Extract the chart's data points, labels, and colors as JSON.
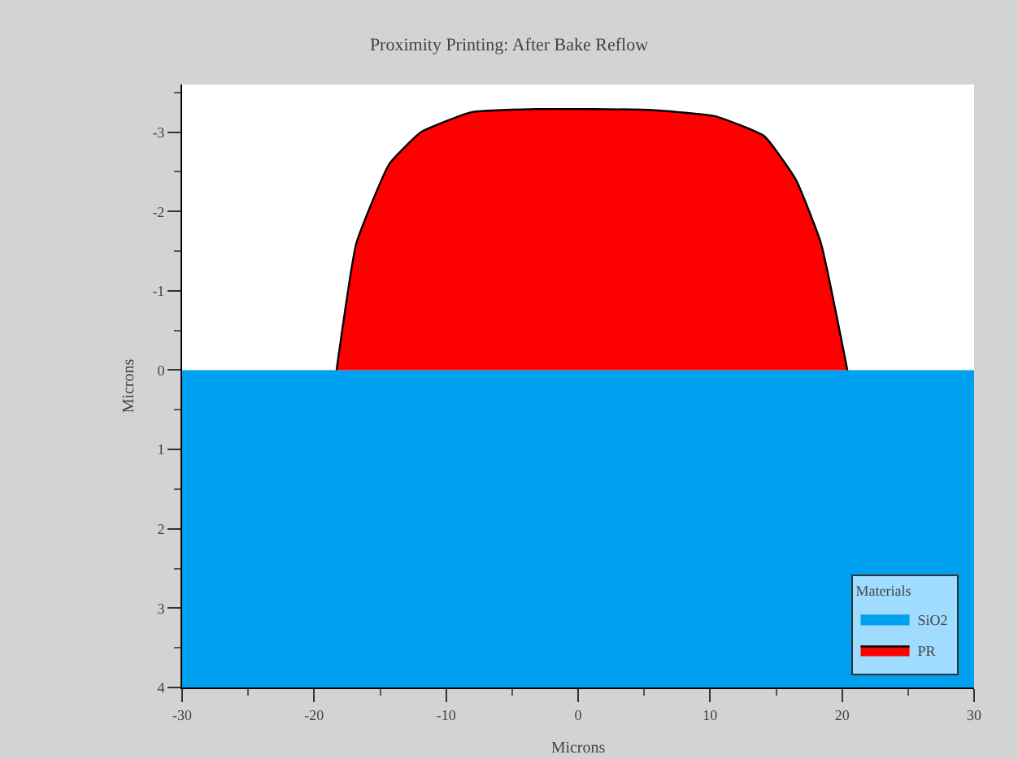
{
  "chart_data": {
    "type": "area",
    "title": "Proximity Printing: After Bake Reflow",
    "xlabel": "Microns",
    "ylabel": "Microns",
    "legend_title": "Materials",
    "legend": "bottom right",
    "grid": false,
    "marker": "none",
    "xlim": [
      -30,
      30
    ],
    "xticks": [
      -30,
      -20,
      -10,
      0,
      10,
      20,
      30
    ],
    "ylim": [
      4,
      -3.6
    ],
    "yticks": [
      -3,
      -2,
      -1,
      0,
      1,
      2,
      3,
      4
    ],
    "series": [
      {
        "name": "SiO2",
        "color": "#00a0f0",
        "x": [
          -30,
          30
        ],
        "values": [
          4,
          4
        ]
      },
      {
        "name": "PR",
        "color": "#ff0000",
        "x": [
          -18.3,
          -16.8,
          -14.3,
          -11.9,
          -8.1,
          -3.2,
          5.4,
          10.4,
          14.1,
          16.5,
          18.4,
          20.4
        ],
        "values": [
          0,
          -1.6,
          -2.6,
          -3.0,
          -3.25,
          -3.29,
          -3.28,
          -3.2,
          -2.95,
          -2.4,
          -1.6,
          0
        ]
      }
    ]
  }
}
